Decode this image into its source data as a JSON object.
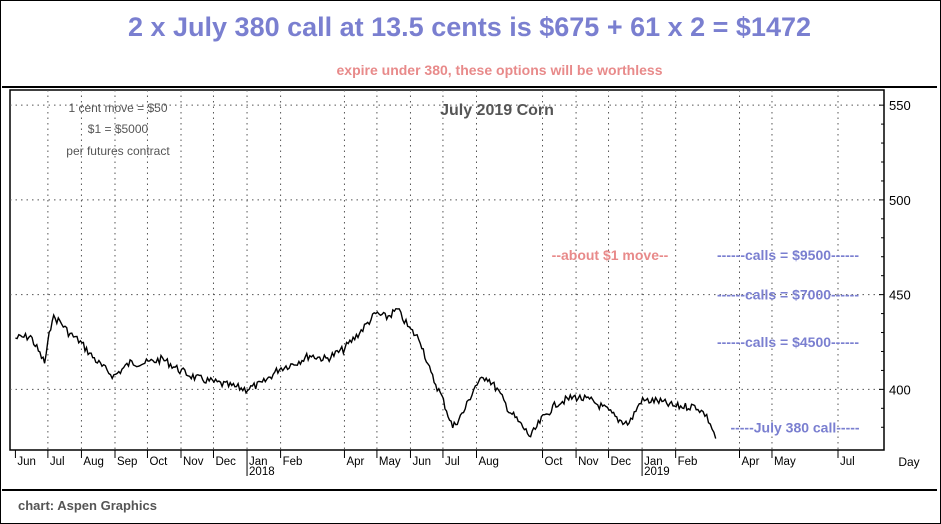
{
  "header": {
    "headline": "2 x July 380 call at 13.5 cents is $675 + 61 x 2 = $1472",
    "subline": "expire under 380, these options will be worthless"
  },
  "footer": {
    "credit": "chart: Aspen Graphics"
  },
  "colors": {
    "headline": "#7a7fd0",
    "subline": "#e88a8a",
    "price_line": "#000000",
    "grid": "#555555",
    "note": "#555555"
  },
  "chart_data": {
    "type": "line",
    "title": "July 2019 Corn",
    "xlabel": "Day",
    "ylabel": "",
    "ylim": [
      368,
      558
    ],
    "yticks": [
      400,
      450,
      500,
      550
    ],
    "grid": true,
    "x_tick_labels": [
      "Jun",
      "Jul",
      "Aug",
      "Sep",
      "Oct",
      "Nov",
      "Dec",
      "Jan",
      "Feb",
      "Apr",
      "May",
      "Jun",
      "Jul",
      "Aug",
      "Oct",
      "Nov",
      "Dec",
      "Jan",
      "Feb",
      "Apr",
      "May",
      "Jul"
    ],
    "year_labels": [
      "2018",
      "2019"
    ],
    "notes": [
      "1 cent move = $50",
      "$1 = $5000",
      "per futures contract"
    ],
    "annotations": [
      {
        "text": "--about $1 move--",
        "y": 471,
        "color": "#e88a8a"
      },
      {
        "text": "------calls = $9500------",
        "y": 471,
        "color": "#7a7fd0"
      },
      {
        "text": "------calls = $7000------",
        "y": 450,
        "color": "#7a7fd0"
      },
      {
        "text": "------calls = $4500------",
        "y": 425,
        "color": "#7a7fd0"
      },
      {
        "text": "-----July 380 call-----",
        "y": 380,
        "color": "#7a7fd0"
      }
    ],
    "series": [
      {
        "x": [
          "2017-06-01",
          "2017-06-15",
          "2017-06-28",
          "2017-07-05",
          "2017-07-12",
          "2017-07-20",
          "2017-07-31",
          "2017-08-10",
          "2017-08-20",
          "2017-08-31",
          "2017-09-15",
          "2017-09-30",
          "2017-10-15",
          "2017-10-31",
          "2017-11-15",
          "2017-11-30",
          "2017-12-15",
          "2017-12-31",
          "2018-01-15",
          "2018-01-31",
          "2018-02-15",
          "2018-02-28",
          "2018-03-15",
          "2018-03-31",
          "2018-04-15",
          "2018-04-30",
          "2018-05-10",
          "2018-05-20",
          "2018-05-31",
          "2018-06-10",
          "2018-06-20",
          "2018-06-30",
          "2018-07-10",
          "2018-07-20",
          "2018-07-31",
          "2018-08-10",
          "2018-08-20",
          "2018-08-31",
          "2018-09-10",
          "2018-09-20",
          "2018-09-30",
          "2018-10-15",
          "2018-10-31",
          "2018-11-15",
          "2018-11-30",
          "2018-12-10",
          "2018-12-20",
          "2018-12-31",
          "2019-01-15",
          "2019-01-31",
          "2019-02-10",
          "2019-02-20",
          "2019-02-28",
          "2019-03-05",
          "2019-03-10"
        ],
        "values": [
          427,
          428,
          414,
          438,
          436,
          430,
          425,
          418,
          412,
          407,
          414,
          414,
          416,
          410,
          406,
          404,
          402,
          400,
          403,
          411,
          414,
          418,
          416,
          421,
          430,
          440,
          438,
          442,
          432,
          426,
          408,
          396,
          380,
          388,
          402,
          407,
          400,
          389,
          382,
          375,
          384,
          393,
          396,
          394,
          389,
          384,
          382,
          394,
          394,
          391,
          391,
          391,
          387,
          382,
          374
        ]
      }
    ]
  }
}
